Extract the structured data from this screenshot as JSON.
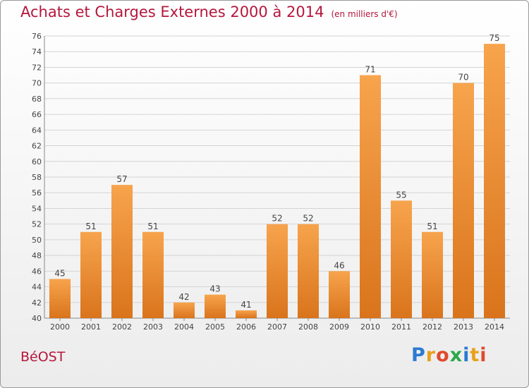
{
  "header": {
    "title": "Achats et Charges Externes 2000 à 2014",
    "unit": "(en milliers d'€)"
  },
  "footer": {
    "town": "BéOST",
    "logo_text": "Proxiti"
  },
  "colors": {
    "title": "#b5173c",
    "bar_light": "#f7a44d",
    "bar_dark": "#d9741c",
    "grid": "#d4d4d4"
  },
  "chart_data": {
    "type": "bar",
    "categories": [
      "2000",
      "2001",
      "2002",
      "2003",
      "2004",
      "2005",
      "2006",
      "2007",
      "2008",
      "2009",
      "2010",
      "2011",
      "2012",
      "2013",
      "2014"
    ],
    "values": [
      45,
      51,
      57,
      51,
      42,
      43,
      41,
      52,
      52,
      46,
      71,
      55,
      51,
      70,
      75
    ],
    "ylim": [
      40,
      76
    ],
    "ytick_step": 2,
    "grid": true,
    "data_labels": true
  }
}
